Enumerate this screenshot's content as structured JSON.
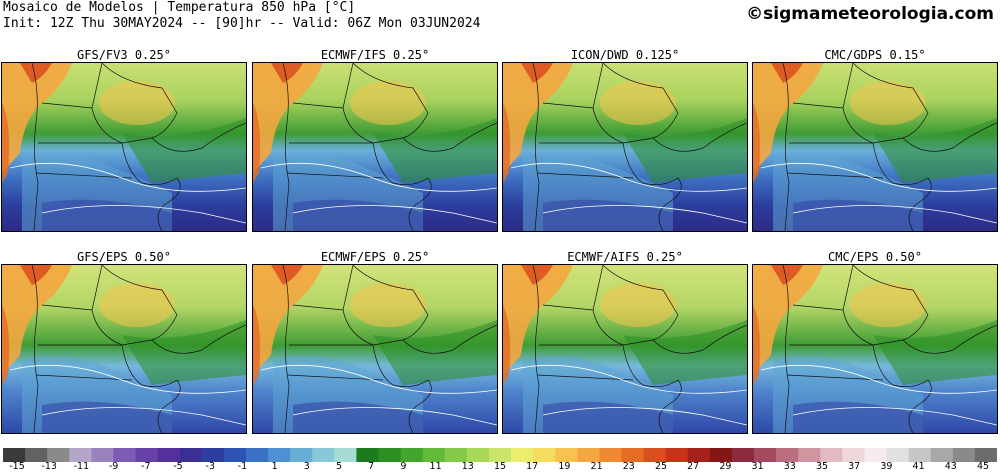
{
  "header": {
    "line1": "Mosaico de Modelos | Temperatura 850 hPa [°C]",
    "line2": "Init: 12Z Thu 30MAY2024 -- [90]hr -- Valid: 06Z Mon 03JUN2024",
    "site": "©sigmameteorologia.com"
  },
  "panels": [
    {
      "title": "GFS/FV3 0.25°"
    },
    {
      "title": "ECMWF/IFS 0.25°"
    },
    {
      "title": "ICON/DWD 0.125°"
    },
    {
      "title": "CMC/GDPS 0.15°"
    },
    {
      "title": "GFS/EPS 0.50°"
    },
    {
      "title": "ECMWF/EPS 0.25°"
    },
    {
      "title": "ECMWF/AIFS 0.25°"
    },
    {
      "title": "CMC/EPS 0.50°"
    }
  ],
  "colorbar": {
    "labels": [
      "-15",
      "-13",
      "-11",
      "-9",
      "-7",
      "-5",
      "-3",
      "-1",
      "1",
      "3",
      "5",
      "7",
      "9",
      "11",
      "13",
      "15",
      "17",
      "19",
      "21",
      "23",
      "25",
      "27",
      "29",
      "31",
      "33",
      "35",
      "37",
      "39",
      "41",
      "43",
      "45"
    ],
    "colors": [
      "#3a3a3a",
      "#626262",
      "#8a8a8a",
      "#b4a6c8",
      "#9a82bf",
      "#7e5cb4",
      "#6741a8",
      "#55309c",
      "#3a2f95",
      "#2e3da0",
      "#2d54b4",
      "#3a70c6",
      "#4f8fd4",
      "#6aaed6",
      "#88c8d8",
      "#a6dcd4",
      "#1e7a1e",
      "#2c8f24",
      "#43a52e",
      "#63b93a",
      "#85c948",
      "#a8d858",
      "#c9e46a",
      "#ecec6e",
      "#f6dc5e",
      "#f7c34e",
      "#f4a640",
      "#ef8a32",
      "#e56d26",
      "#d95020",
      "#c4341a",
      "#a4201a",
      "#841616",
      "#8c2a40",
      "#a44a60",
      "#bb6e80",
      "#cf96a2",
      "#e0bcc2",
      "#eed8da",
      "#f6ecee",
      "#e0e0e0",
      "#c6c6c6",
      "#a8a8a8",
      "#8a8a8a",
      "#6c6c6c"
    ]
  }
}
